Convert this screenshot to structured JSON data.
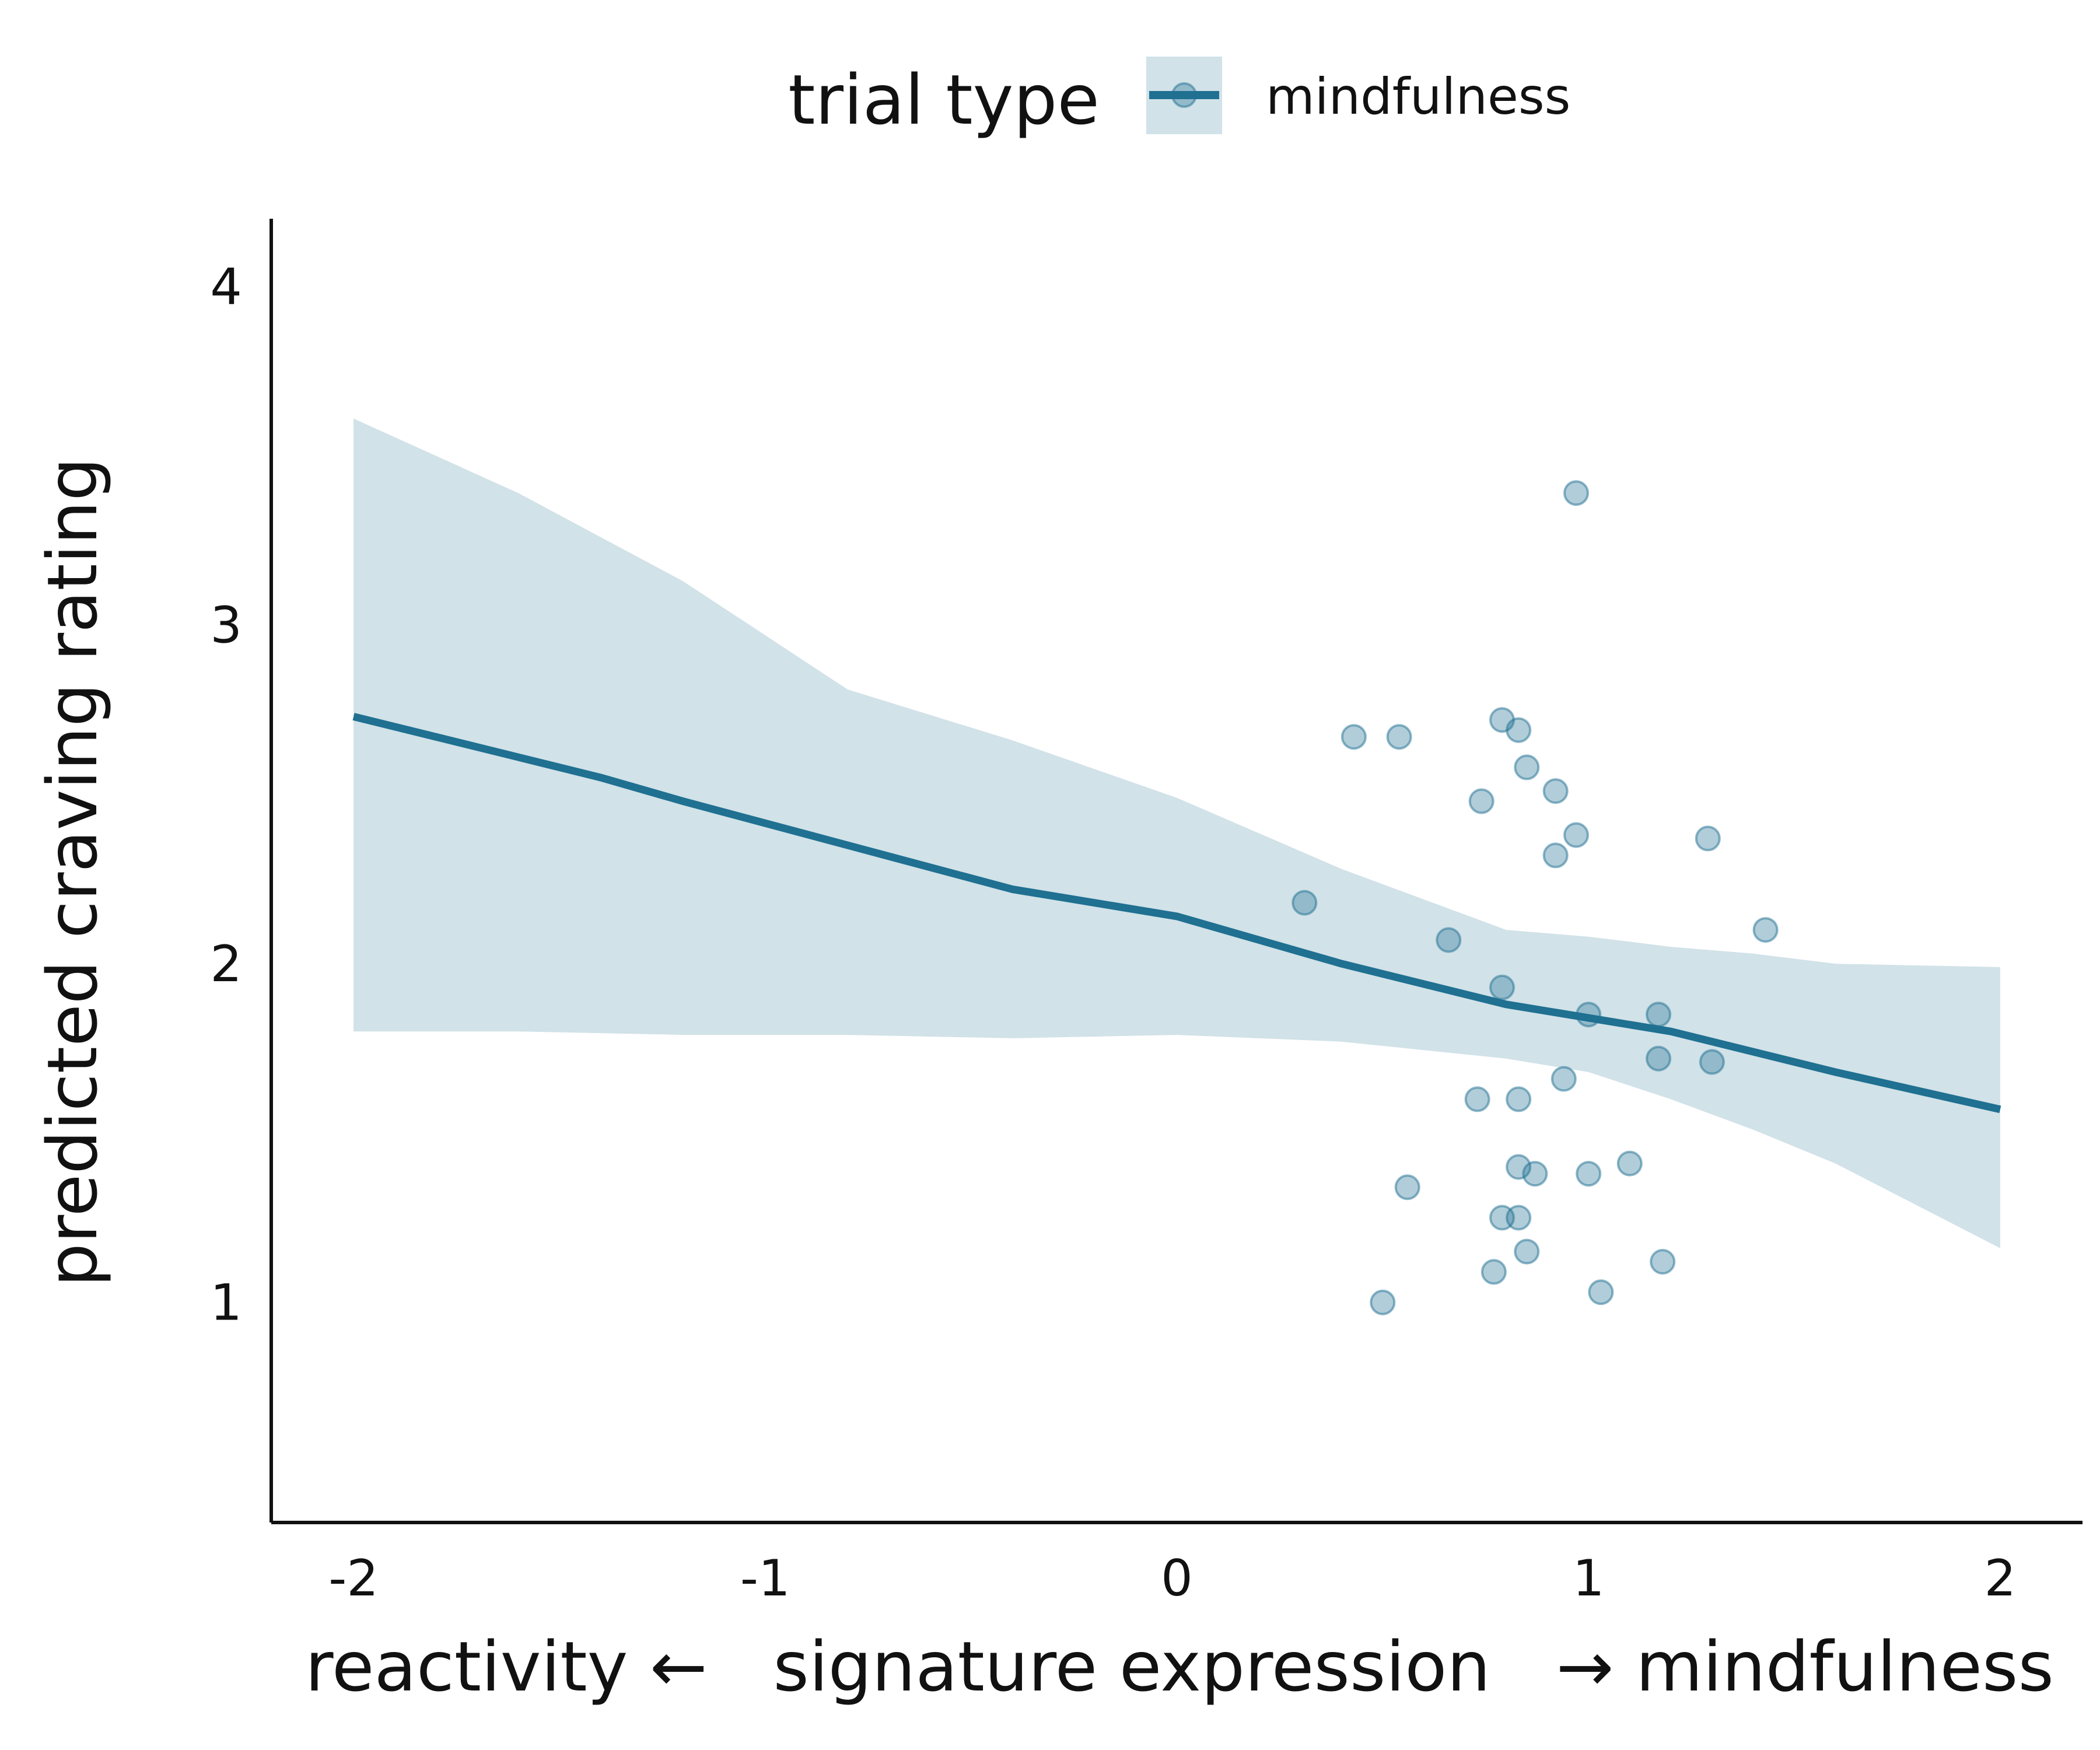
{
  "chart_data": {
    "type": "scatter",
    "title": "",
    "xlabel": "reactivity ←   signature expression   → mindfulness",
    "ylabel": "predicted craving rating",
    "xlim": [
      -2.2,
      2.2
    ],
    "ylim": [
      0.35,
      4.2
    ],
    "x_ticks": [
      -2,
      -1,
      0,
      1,
      2
    ],
    "y_ticks": [
      1,
      2,
      3,
      4
    ],
    "grid": false,
    "legend": {
      "title": "trial type",
      "position": "top",
      "entries": [
        {
          "label": "mindfulness",
          "color": "#1f7091"
        }
      ]
    },
    "colors": {
      "line": "#1f7091",
      "ribbon": "#d1e2e8",
      "points": "#1f7091"
    },
    "series": [
      {
        "label": "mindfulness",
        "kind": "points",
        "x": [
          0.97,
          0.43,
          0.54,
          0.79,
          0.83,
          0.85,
          0.74,
          0.92,
          0.97,
          0.92,
          1.29,
          0.31,
          0.66,
          1.43,
          0.79,
          1.0,
          1.17,
          1.17,
          1.3,
          0.94,
          0.73,
          0.83,
          0.83,
          0.87,
          1.0,
          1.1,
          0.56,
          0.79,
          0.83,
          0.85,
          0.77,
          1.18,
          1.03,
          0.5
        ],
        "y": [
          3.39,
          2.67,
          2.67,
          2.72,
          2.69,
          2.58,
          2.48,
          2.51,
          2.38,
          2.32,
          2.37,
          2.18,
          2.07,
          2.1,
          1.93,
          1.85,
          1.85,
          1.72,
          1.71,
          1.66,
          1.6,
          1.6,
          1.4,
          1.38,
          1.38,
          1.41,
          1.34,
          1.25,
          1.25,
          1.15,
          1.09,
          1.12,
          1.03,
          1.0
        ]
      },
      {
        "label": "fit",
        "kind": "line",
        "x": [
          -2,
          -1.6,
          -1.4,
          -1.2,
          -0.8,
          -0.4,
          0,
          0.4,
          0.8,
          1.2,
          1.6,
          2
        ],
        "y": [
          2.73,
          2.61,
          2.55,
          2.48,
          2.35,
          2.22,
          2.14,
          2.0,
          1.88,
          1.8,
          1.68,
          1.57
        ]
      },
      {
        "label": "confidence band",
        "kind": "ribbon",
        "x": [
          -2,
          -1.6,
          -1.2,
          -0.8,
          -0.4,
          0,
          0.4,
          0.8,
          1.0,
          1.2,
          1.4,
          1.6,
          2
        ],
        "upper": [
          3.61,
          3.39,
          3.13,
          2.81,
          2.66,
          2.49,
          2.28,
          2.1,
          2.08,
          2.05,
          2.03,
          2.0,
          1.99
        ],
        "lower": [
          1.8,
          1.8,
          1.79,
          1.79,
          1.78,
          1.79,
          1.77,
          1.72,
          1.68,
          1.6,
          1.51,
          1.41,
          1.16
        ]
      }
    ]
  }
}
